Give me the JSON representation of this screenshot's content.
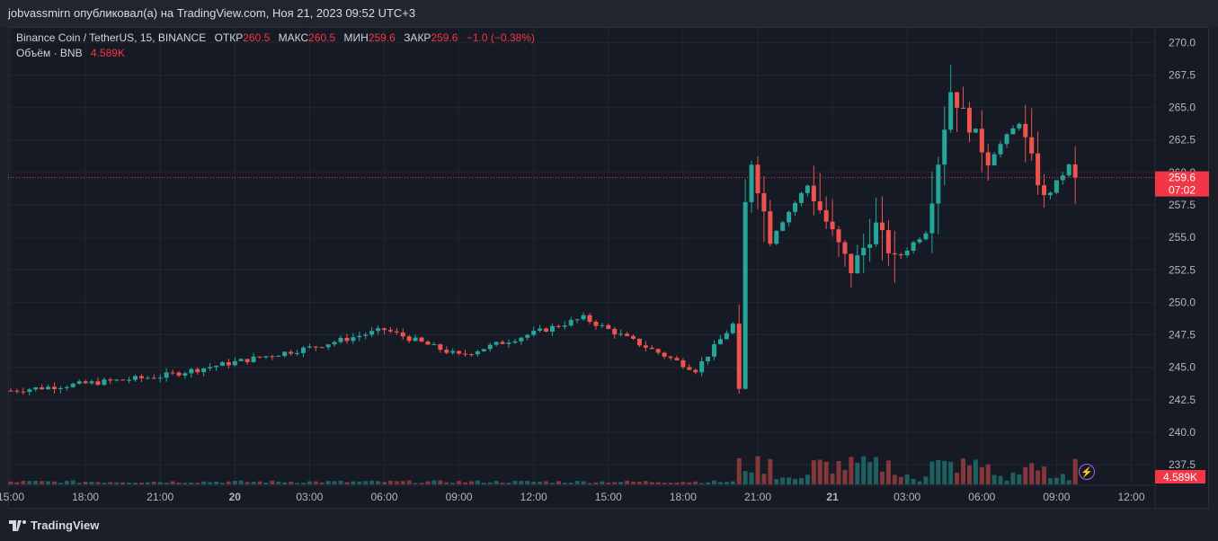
{
  "header": {
    "publish_line": "jobvassmirn опубликовал(а) на TradingView.com, Ноя 21, 2023 09:52 UTC+3"
  },
  "legend": {
    "symbol": "Binance Coin / TetherUS, 15, BINANCE",
    "open_label": "ОТКР",
    "open_value": "260.5",
    "high_label": "МАКС",
    "high_value": "260.5",
    "low_label": "МИН",
    "low_value": "259.6",
    "close_label": "ЗАКР",
    "close_value": "259.6",
    "change": "−1.0 (−0.38%)",
    "volume_label": "Объём · BNB",
    "volume_value": "4.589K"
  },
  "price_marker": {
    "price": "259.6",
    "countdown": "07:02"
  },
  "volume_marker": "4.589K",
  "brand": "TradingView",
  "colors": {
    "up": "#26a69a",
    "down": "#ef5350",
    "background": "#161a25",
    "grid": "#222631",
    "marker": "#f23645"
  },
  "chart_data": {
    "type": "candlestick",
    "y_ticks": [
      "270.0",
      "267.5",
      "265.0",
      "262.5",
      "260.0",
      "257.5",
      "255.0",
      "252.5",
      "250.0",
      "247.5",
      "245.0",
      "242.5",
      "240.0",
      "237.5"
    ],
    "x_ticks": [
      "15:00",
      "18:00",
      "21:00",
      "20",
      "03:00",
      "06:00",
      "09:00",
      "12:00",
      "15:00",
      "18:00",
      "21:00",
      "21",
      "03:00",
      "06:00",
      "09:00",
      "12:00"
    ],
    "ylim": [
      235.5,
      271.2
    ],
    "interval_minutes": 15,
    "last_price": 259.6,
    "key_points": [
      {
        "time": "Nov 19 15:00",
        "price": 243.2
      },
      {
        "time": "Nov 19 21:00",
        "price": 244.3
      },
      {
        "time": "Nov 20 03:00",
        "price": 246.5
      },
      {
        "time": "Nov 20 06:00",
        "price": 247.9
      },
      {
        "time": "Nov 20 09:00",
        "price": 245.9
      },
      {
        "time": "Nov 20 14:00",
        "price": 248.8
      },
      {
        "time": "Nov 20 18:30",
        "price": 244.8
      },
      {
        "time": "Nov 20 20:00",
        "price": 248.3
      },
      {
        "time": "Nov 20 20:15",
        "price": 242.8
      },
      {
        "time": "Nov 20 20:30",
        "price": 257.5
      },
      {
        "time": "Nov 20 20:45",
        "price": 260.9
      },
      {
        "time": "Nov 20 21:30",
        "price": 255.0
      },
      {
        "time": "Nov 20 23:00",
        "price": 259.0
      },
      {
        "time": "Nov 21 00:45",
        "price": 252.5
      },
      {
        "time": "Nov 21 01:45",
        "price": 255.9
      },
      {
        "time": "Nov 21 02:30",
        "price": 253.2
      },
      {
        "time": "Nov 21 03:45",
        "price": 255.5
      },
      {
        "time": "Nov 21 04:45",
        "price": 266.3
      },
      {
        "time": "Nov 21 06:15",
        "price": 261.0
      },
      {
        "time": "Nov 21 07:30",
        "price": 263.9
      },
      {
        "time": "Nov 21 08:30",
        "price": 257.9
      },
      {
        "time": "Nov 21 09:30",
        "price": 260.5
      },
      {
        "time": "Nov 21 09:45",
        "price": 259.6
      }
    ]
  }
}
